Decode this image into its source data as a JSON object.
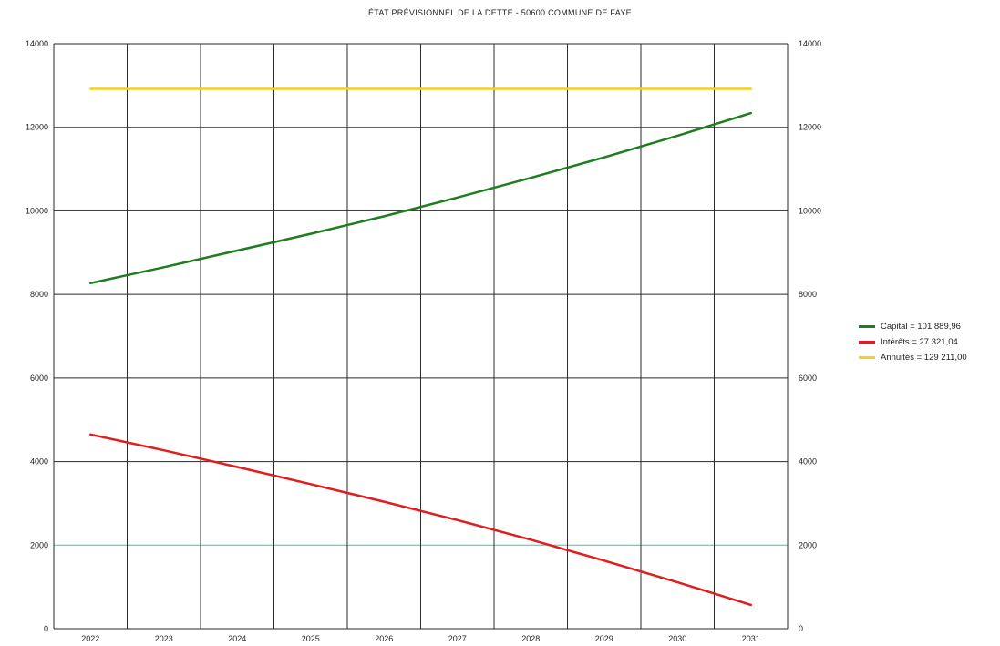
{
  "chart_data": {
    "type": "line",
    "title": "ÉTAT PRÉVISIONNEL DE LA DETTE - 50600 COMMUNE DE FAYE",
    "x": [
      "2022",
      "2023",
      "2024",
      "2025",
      "2026",
      "2027",
      "2028",
      "2029",
      "2030",
      "2031"
    ],
    "ylim": [
      0,
      14000
    ],
    "yticks": [
      0,
      2000,
      4000,
      6000,
      8000,
      10000,
      12000,
      14000
    ],
    "ylabel": "",
    "xlabel": "",
    "grid": true,
    "secondary_y_axis": true,
    "legend_position": "right",
    "series": [
      {
        "name": "Capital = 101 889,96",
        "color": "#1e7d1e",
        "values": [
          8270,
          8650,
          9050,
          9450,
          9870,
          10320,
          10790,
          11280,
          11800,
          12340
        ]
      },
      {
        "name": "Intérêts = 27 321,04",
        "color": "#e01e1e",
        "values": [
          4650,
          4270,
          3870,
          3460,
          3040,
          2600,
          2130,
          1630,
          1110,
          570
        ]
      },
      {
        "name": "Annuités = 129 211,00",
        "color": "#f2d21a",
        "values": [
          12920,
          12920,
          12920,
          12920,
          12920,
          12920,
          12920,
          12920,
          12920,
          12920
        ]
      }
    ]
  }
}
